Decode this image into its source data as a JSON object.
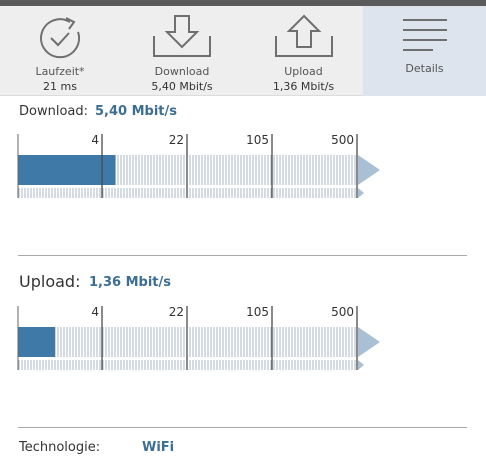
{
  "tabs": [
    {
      "label": "Laufzeit*",
      "value": "21 ms",
      "icon": "stopwatch-icon"
    },
    {
      "label": "Download",
      "value": "5,40 Mbit/s",
      "icon": "download-icon"
    },
    {
      "label": "Upload",
      "value": "1,36 Mbit/s",
      "icon": "upload-icon"
    },
    {
      "label": "Details",
      "value": "",
      "icon": "menu-lines-icon"
    }
  ],
  "download": {
    "title": "Download:",
    "value": "5,40 Mbit/s",
    "fill_fraction": 0.287
  },
  "upload": {
    "title": "Upload:",
    "value": "1,36 Mbit/s",
    "fill_fraction": 0.109
  },
  "scale_ticks": [
    "4",
    "22",
    "105",
    "500"
  ],
  "technology": {
    "label": "Technologie:",
    "value": "WiFi"
  },
  "colors": {
    "accent": "#3c6e93",
    "fill": "#3f79a8",
    "arrow": "#a9bfd4",
    "stripe": "#a8b7c4",
    "tab_active": "#dde4ed"
  }
}
